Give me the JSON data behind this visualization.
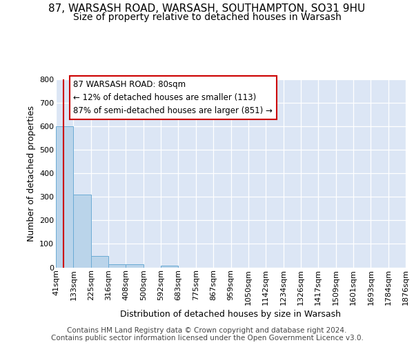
{
  "title_line1": "87, WARSASH ROAD, WARSASH, SOUTHAMPTON, SO31 9HU",
  "title_line2": "Size of property relative to detached houses in Warsash",
  "xlabel": "Distribution of detached houses by size in Warsash",
  "ylabel": "Number of detached properties",
  "bin_edges": [
    41,
    133,
    225,
    316,
    408,
    500,
    592,
    683,
    775,
    867,
    959,
    1050,
    1142,
    1234,
    1326,
    1417,
    1509,
    1601,
    1693,
    1784,
    1876
  ],
  "bar_heights": [
    600,
    310,
    47,
    12,
    14,
    0,
    8,
    0,
    0,
    0,
    0,
    0,
    0,
    0,
    0,
    0,
    0,
    0,
    0,
    0
  ],
  "bar_color": "#bad4ea",
  "bar_edge_color": "#6aaad4",
  "property_size": 80,
  "property_line_color": "#cc0000",
  "annotation_line1": "87 WARSASH ROAD: 80sqm",
  "annotation_line2": "← 12% of detached houses are smaller (113)",
  "annotation_line3": "87% of semi-detached houses are larger (851) →",
  "annotation_box_color": "#ffffff",
  "annotation_box_edge_color": "#cc0000",
  "ylim": [
    0,
    800
  ],
  "yticks": [
    0,
    100,
    200,
    300,
    400,
    500,
    600,
    700,
    800
  ],
  "fig_bg_color": "#ffffff",
  "plot_bg_color": "#dce6f5",
  "grid_color": "#ffffff",
  "title_fontsize": 11,
  "subtitle_fontsize": 10,
  "axis_label_fontsize": 9,
  "tick_label_fontsize": 8,
  "annotation_fontsize": 8.5,
  "footer_fontsize": 7.5,
  "footer_line1": "Contains HM Land Registry data © Crown copyright and database right 2024.",
  "footer_line2": "Contains public sector information licensed under the Open Government Licence v3.0."
}
